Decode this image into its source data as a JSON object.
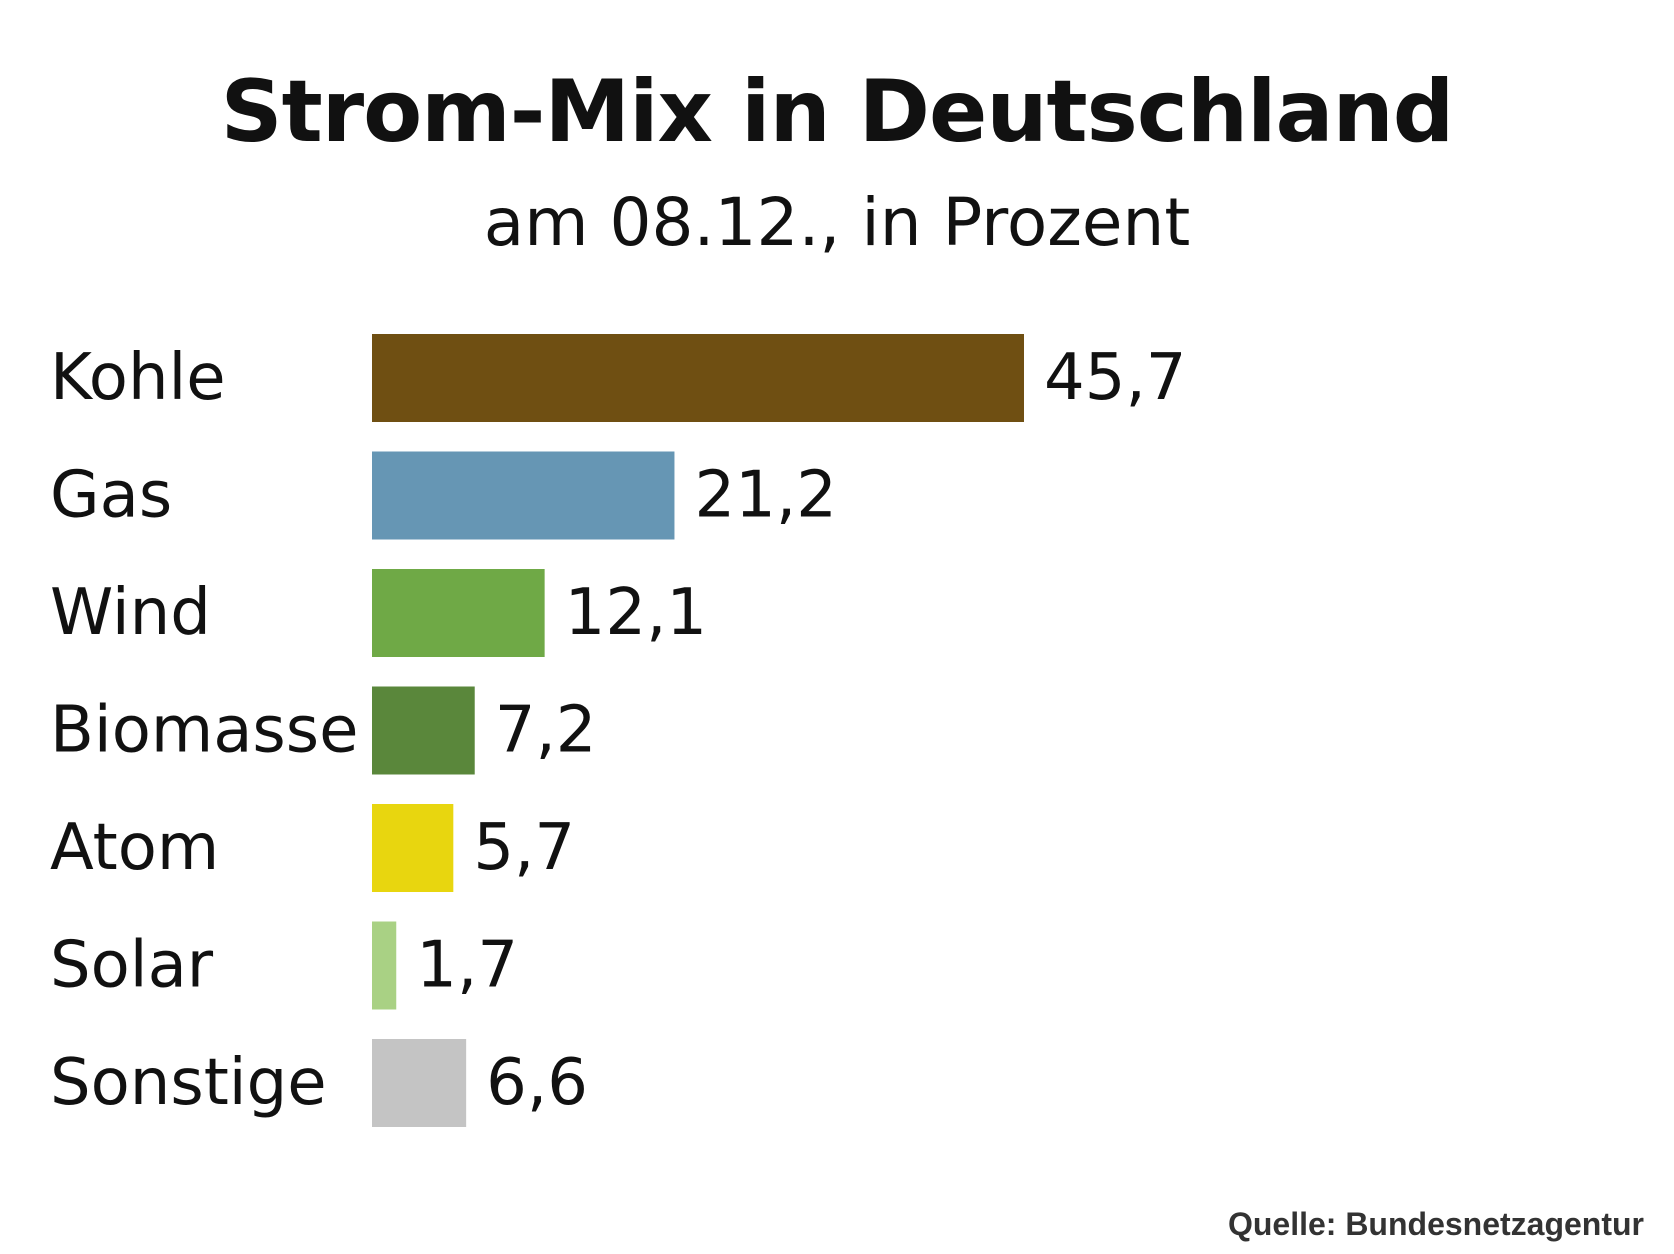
{
  "chart_data": {
    "type": "bar",
    "orientation": "horizontal",
    "title": "Strom-Mix in Deutschland",
    "subtitle": "am 08.12., in Prozent",
    "categories": [
      "Kohle",
      "Gas",
      "Wind",
      "Biomasse",
      "Atom",
      "Solar",
      "Sonstige"
    ],
    "values": [
      45.7,
      21.2,
      12.1,
      7.2,
      5.7,
      1.7,
      6.6
    ],
    "value_labels": [
      "45,7",
      "21,2",
      "12,1",
      "7,2",
      "5,7",
      "1,7",
      "6,6"
    ],
    "colors": [
      "#6f4f12",
      "#6696b4",
      "#6fa946",
      "#5a873b",
      "#e8d60f",
      "#a9d184",
      "#c4c4c4"
    ],
    "xlim": [
      0,
      45.7
    ],
    "grid": false,
    "legend": "none"
  },
  "source": "Quelle: Bundesnetzagentur"
}
